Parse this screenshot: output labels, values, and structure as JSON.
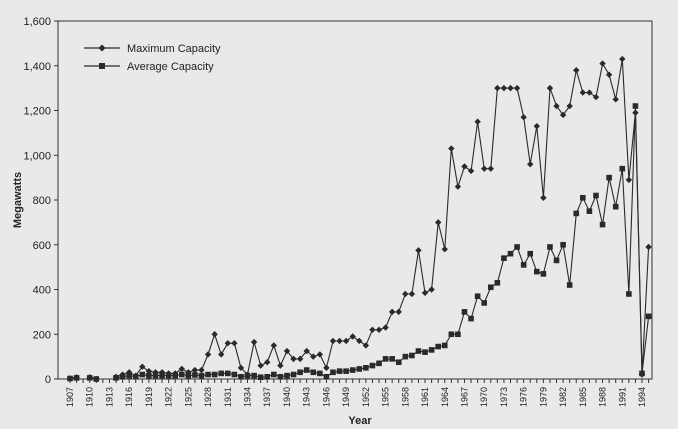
{
  "chart_data": {
    "type": "line",
    "title": "",
    "xlabel": "Year",
    "ylabel": "Megawatts",
    "ylim": [
      0,
      1600
    ],
    "xlim": [
      1907,
      1995
    ],
    "yticks": [
      "0",
      "200",
      "400",
      "600",
      "800",
      "1,000",
      "1,200",
      "1,400",
      "1,600"
    ],
    "ytick_values": [
      0,
      200,
      400,
      600,
      800,
      1000,
      1200,
      1400,
      1600
    ],
    "xtick_labels": [
      "1907",
      "1910",
      "1913",
      "1916",
      "1919",
      "1922",
      "1925",
      "1928",
      "1931",
      "1934",
      "1937",
      "1940",
      "1943",
      "1946",
      "1949",
      "1952",
      "1955",
      "1958",
      "1961",
      "1964",
      "1967",
      "1970",
      "1973",
      "1976",
      "1979",
      "1982",
      "1985",
      "1988",
      "1991",
      "1994"
    ],
    "grid": false,
    "legend": "top-left",
    "x": [
      1907,
      1908,
      1909,
      1910,
      1911,
      1912,
      1913,
      1914,
      1915,
      1916,
      1917,
      1918,
      1919,
      1920,
      1921,
      1922,
      1923,
      1924,
      1925,
      1926,
      1927,
      1928,
      1929,
      1930,
      1931,
      1932,
      1933,
      1934,
      1935,
      1936,
      1937,
      1938,
      1939,
      1940,
      1941,
      1942,
      1943,
      1944,
      1945,
      1946,
      1947,
      1948,
      1949,
      1950,
      1951,
      1952,
      1953,
      1954,
      1955,
      1956,
      1957,
      1958,
      1959,
      1960,
      1961,
      1962,
      1963,
      1964,
      1965,
      1966,
      1967,
      1968,
      1969,
      1970,
      1971,
      1972,
      1973,
      1974,
      1975,
      1976,
      1977,
      1978,
      1979,
      1980,
      1981,
      1982,
      1983,
      1984,
      1985,
      1986,
      1987,
      1988,
      1989,
      1990,
      1991,
      1992,
      1993,
      1994,
      1995
    ],
    "series": [
      {
        "name": "Maximum Capacity",
        "marker": "diamond",
        "values": [
          3,
          8,
          null,
          8,
          0,
          null,
          null,
          10,
          20,
          30,
          15,
          55,
          35,
          30,
          30,
          25,
          25,
          45,
          30,
          40,
          40,
          110,
          200,
          110,
          160,
          160,
          50,
          20,
          165,
          60,
          75,
          150,
          60,
          125,
          90,
          90,
          125,
          100,
          110,
          50,
          170,
          170,
          170,
          190,
          170,
          150,
          220,
          220,
          230,
          300,
          300,
          380,
          380,
          575,
          385,
          400,
          700,
          580,
          1030,
          860,
          950,
          930,
          1150,
          940,
          940,
          1300,
          1300,
          1300,
          1300,
          1170,
          960,
          1130,
          810,
          1300,
          1220,
          1180,
          1220,
          1380,
          1280,
          1280,
          1260,
          1410,
          1360,
          1250,
          1430,
          890,
          1190,
          20,
          590
        ]
      },
      {
        "name": "Average Capacity",
        "marker": "square",
        "values": [
          2,
          5,
          null,
          5,
          0,
          null,
          null,
          5,
          10,
          15,
          10,
          20,
          15,
          15,
          15,
          15,
          15,
          20,
          15,
          18,
          15,
          20,
          20,
          25,
          25,
          20,
          10,
          15,
          15,
          8,
          10,
          20,
          10,
          15,
          20,
          30,
          40,
          30,
          25,
          10,
          30,
          35,
          35,
          40,
          45,
          50,
          60,
          70,
          90,
          90,
          75,
          100,
          105,
          125,
          120,
          130,
          145,
          150,
          200,
          200,
          300,
          270,
          370,
          340,
          410,
          430,
          540,
          560,
          590,
          510,
          560,
          480,
          470,
          590,
          530,
          600,
          420,
          740,
          810,
          750,
          820,
          690,
          900,
          770,
          940,
          380,
          1220,
          25,
          280
        ]
      }
    ],
    "colors": {
      "line": "#2a2a2a",
      "background": "#e9e9e7"
    }
  }
}
